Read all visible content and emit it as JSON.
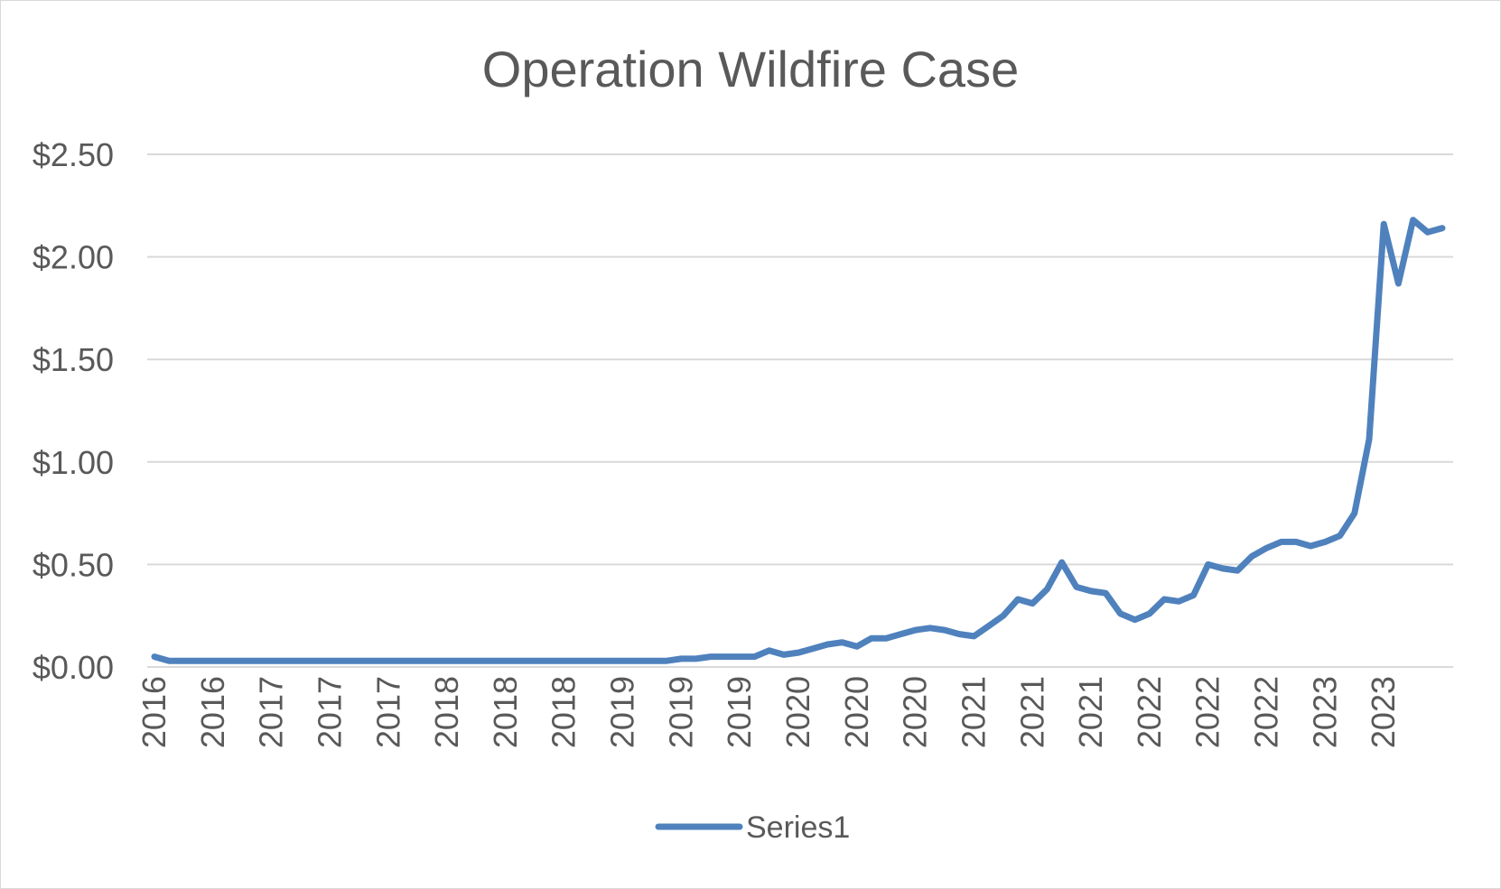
{
  "chart_data": {
    "type": "line",
    "title": "Operation Wildfire Case",
    "xlabel": "",
    "ylabel": "",
    "ylim": [
      0,
      2.5
    ],
    "yticks": [
      0,
      0.5,
      1.0,
      1.5,
      2.0,
      2.5
    ],
    "ytick_labels": [
      "$0.00",
      "$0.50",
      "$1.00",
      "$1.50",
      "$2.00",
      "$2.50"
    ],
    "grid": true,
    "legend_position": "bottom",
    "x_tick_labels": [
      "2016",
      "2016",
      "2017",
      "2017",
      "2017",
      "2018",
      "2018",
      "2018",
      "2019",
      "2019",
      "2019",
      "2020",
      "2020",
      "2020",
      "2021",
      "2021",
      "2021",
      "2022",
      "2022",
      "2022",
      "2023",
      "2023"
    ],
    "x_tick_every": 4,
    "series": [
      {
        "name": "Series1",
        "color": "#4f81bd",
        "values": [
          0.05,
          0.03,
          0.03,
          0.03,
          0.03,
          0.03,
          0.03,
          0.03,
          0.03,
          0.03,
          0.03,
          0.03,
          0.03,
          0.03,
          0.03,
          0.03,
          0.03,
          0.03,
          0.03,
          0.03,
          0.03,
          0.03,
          0.03,
          0.03,
          0.03,
          0.03,
          0.03,
          0.03,
          0.03,
          0.03,
          0.03,
          0.03,
          0.03,
          0.03,
          0.03,
          0.03,
          0.04,
          0.04,
          0.05,
          0.05,
          0.05,
          0.05,
          0.08,
          0.06,
          0.07,
          0.09,
          0.11,
          0.12,
          0.1,
          0.14,
          0.14,
          0.16,
          0.18,
          0.19,
          0.18,
          0.16,
          0.15,
          0.2,
          0.25,
          0.33,
          0.31,
          0.38,
          0.51,
          0.39,
          0.37,
          0.36,
          0.26,
          0.23,
          0.26,
          0.33,
          0.32,
          0.35,
          0.5,
          0.48,
          0.47,
          0.54,
          0.58,
          0.61,
          0.61,
          0.59,
          0.61,
          0.64,
          0.75,
          1.11,
          2.16,
          1.87,
          2.18,
          2.12,
          2.14
        ]
      }
    ]
  }
}
